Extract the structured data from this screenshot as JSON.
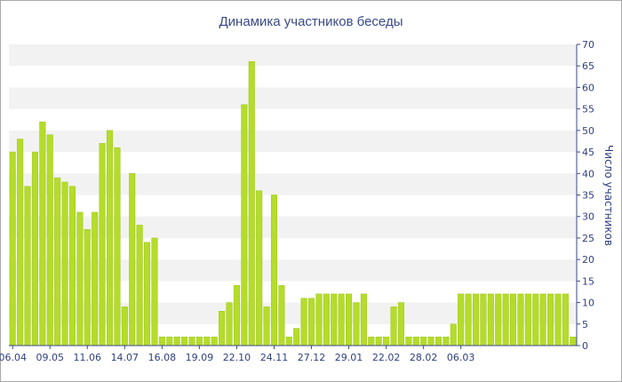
{
  "chart_data": {
    "type": "bar",
    "title": "Динамика участников беседы",
    "xlabel": "",
    "ylabel": "Число участников",
    "ylim": [
      0,
      70
    ],
    "y_ticks": [
      0,
      5,
      10,
      15,
      20,
      25,
      30,
      35,
      40,
      45,
      50,
      55,
      60,
      65,
      70
    ],
    "x_ticks": [
      {
        "label": "06.04",
        "index": 0
      },
      {
        "label": "09.05",
        "index": 5
      },
      {
        "label": "11.06",
        "index": 10
      },
      {
        "label": "14.07",
        "index": 15
      },
      {
        "label": "16.08",
        "index": 20
      },
      {
        "label": "19.09",
        "index": 25
      },
      {
        "label": "22.10",
        "index": 30
      },
      {
        "label": "24.11",
        "index": 35
      },
      {
        "label": "27.12",
        "index": 40
      },
      {
        "label": "29.01",
        "index": 45
      },
      {
        "label": "22.02",
        "index": 50
      },
      {
        "label": "28.02",
        "index": 55
      },
      {
        "label": "06.03",
        "index": 60
      }
    ],
    "values": [
      45,
      48,
      37,
      45,
      52,
      49,
      39,
      38,
      37,
      31,
      27,
      31,
      47,
      50,
      46,
      9,
      40,
      28,
      24,
      25,
      2,
      2,
      2,
      2,
      2,
      2,
      2,
      2,
      8,
      10,
      14,
      56,
      66,
      36,
      9,
      35,
      14,
      2,
      4,
      11,
      11,
      12,
      12,
      12,
      12,
      12,
      10,
      12,
      2,
      2,
      2,
      9,
      10,
      2,
      2,
      2,
      2,
      2,
      2,
      5,
      12,
      12,
      12,
      12,
      12,
      12,
      12,
      12,
      12,
      12,
      12,
      12,
      12,
      12,
      12,
      2
    ],
    "grid": "alternating horizontal bands",
    "legend": "none",
    "bar_color": "#b5dc2a",
    "bar_edge_color": "#9cc41a",
    "band_color": "#f2f2f2",
    "text_color": "#2f3f7f"
  }
}
